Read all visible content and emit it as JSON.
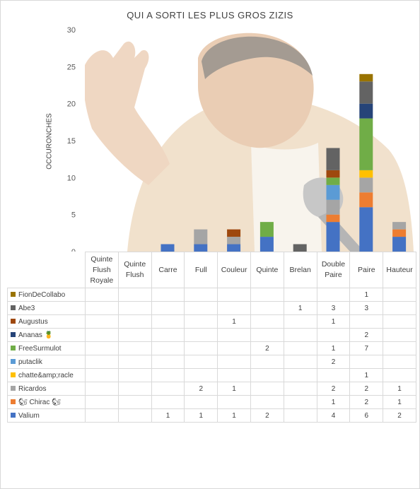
{
  "chart_data": {
    "type": "bar",
    "stacked": true,
    "title": "QUI A SORTI LES PLUS GROS ZIZIS",
    "ylabel": "OCCURONCHES",
    "xlabel": "",
    "ylim": [
      0,
      30
    ],
    "yticks": [
      "0",
      "5",
      "10",
      "15",
      "20",
      "25",
      "30"
    ],
    "grid": false,
    "legend": "data-table",
    "categories": [
      "Quinte Flush Royale",
      "Quinte Flush",
      "Carre",
      "Full",
      "Couleur",
      "Quinte",
      "Brelan",
      "Double Paire",
      "Paire",
      "Hauteur"
    ],
    "series": [
      {
        "name": "Valium",
        "color": "#4472c4",
        "values": [
          null,
          null,
          1,
          1,
          1,
          2,
          null,
          4,
          6,
          2
        ]
      },
      {
        "name": "🐿 Chirac 🐿",
        "color": "#ed7d31",
        "values": [
          null,
          null,
          null,
          null,
          null,
          null,
          null,
          1,
          2,
          1
        ]
      },
      {
        "name": "Ricardos",
        "color": "#a5a5a5",
        "values": [
          null,
          null,
          null,
          2,
          1,
          null,
          null,
          2,
          2,
          1
        ]
      },
      {
        "name": "chatte&amp;racle",
        "color": "#ffc000",
        "values": [
          null,
          null,
          null,
          null,
          null,
          null,
          null,
          null,
          1,
          null
        ]
      },
      {
        "name": "putaclik",
        "color": "#5b9bd5",
        "values": [
          null,
          null,
          null,
          null,
          null,
          null,
          null,
          2,
          null,
          null
        ]
      },
      {
        "name": "FreeSurmulot",
        "color": "#70ad47",
        "values": [
          null,
          null,
          null,
          null,
          null,
          2,
          null,
          1,
          7,
          null
        ]
      },
      {
        "name": "Ananas 🍍",
        "color": "#264478",
        "values": [
          null,
          null,
          null,
          null,
          null,
          null,
          null,
          null,
          2,
          null
        ]
      },
      {
        "name": "Augustus",
        "color": "#9e480e",
        "values": [
          null,
          null,
          null,
          null,
          1,
          null,
          null,
          1,
          null,
          null
        ]
      },
      {
        "name": "Abe3",
        "color": "#636363",
        "values": [
          null,
          null,
          null,
          null,
          null,
          null,
          1,
          3,
          3,
          null
        ]
      },
      {
        "name": "FionDeCollabo",
        "color": "#997300",
        "values": [
          null,
          null,
          null,
          null,
          null,
          null,
          null,
          null,
          1,
          null
        ]
      }
    ]
  }
}
